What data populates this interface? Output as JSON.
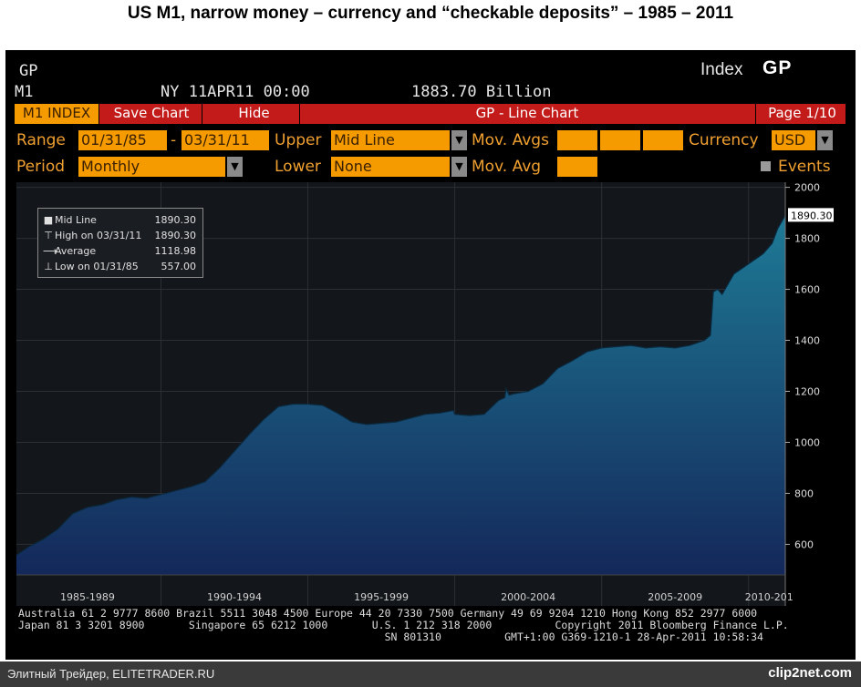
{
  "page_title": "US M1, narrow money – currency and “checkable deposits” –  1985 – 2011",
  "header": {
    "line1_left": "GP",
    "line1_right": "Index",
    "brand": "GP",
    "ticker": "M1",
    "as_of": "NY 11APR11 00:00",
    "last_value": "1883.70 Billion"
  },
  "toolbar": {
    "index_label": "M1 INDEX",
    "save_label": "Save Chart",
    "hide_label": "Hide",
    "chart_title": "GP - Line Chart",
    "page_label": "Page 1/10"
  },
  "controls": {
    "range_label": "Range",
    "range_start": "01/31/85",
    "range_sep": "-",
    "range_end": "03/31/11",
    "upper_label": "Upper",
    "upper_value": "Mid Line",
    "mov_avgs_label": "Mov. Avgs",
    "currency_label": "Currency",
    "currency_value": "USD",
    "period_label": "Period",
    "period_value": "Monthly",
    "lower_label": "Lower",
    "lower_value": "None",
    "mov_avg_label": "Mov. Avg",
    "events_label": "Events"
  },
  "legend": [
    {
      "symbol": "square",
      "label": "Mid Line",
      "value": "1890.30"
    },
    {
      "symbol": "high",
      "label": "High on 03/31/11",
      "value": "1890.30"
    },
    {
      "symbol": "avg",
      "label": "Average",
      "value": "1118.98"
    },
    {
      "symbol": "low",
      "label": "Low on 01/31/85",
      "value": "557.00"
    }
  ],
  "chart_data": {
    "type": "area",
    "x_range": [
      "1985-01-31",
      "2011-03-31"
    ],
    "x_tick_labels": [
      "1985-1989",
      "1990-1994",
      "1995-1999",
      "2000-2004",
      "2005-2009",
      "2010-201"
    ],
    "ylim": [
      480,
      2020
    ],
    "y_ticks": [
      600,
      800,
      1000,
      1200,
      1400,
      1600,
      1800,
      2000
    ],
    "last_value_label": "1890.30",
    "colors": {
      "fill_top": "#1e7a96",
      "fill_bottom": "#14285a",
      "line": "#0a2a40",
      "bg": "#13161a",
      "grid": "#2c3036"
    },
    "x": [
      1985.08,
      1985.5,
      1986.0,
      1986.5,
      1987.0,
      1987.5,
      1988.0,
      1988.5,
      1989.0,
      1989.5,
      1990.0,
      1990.5,
      1991.0,
      1991.5,
      1992.0,
      1992.5,
      1993.0,
      1993.5,
      1994.0,
      1994.5,
      1995.0,
      1995.5,
      1996.0,
      1996.5,
      1997.0,
      1997.5,
      1998.0,
      1998.5,
      1999.0,
      1999.5,
      1999.95,
      2000.0,
      2000.5,
      2001.0,
      2001.5,
      2001.7,
      2001.75,
      2001.85,
      2002.0,
      2002.5,
      2003.0,
      2003.5,
      2004.0,
      2004.5,
      2005.0,
      2005.5,
      2006.0,
      2006.5,
      2007.0,
      2007.5,
      2008.0,
      2008.5,
      2008.7,
      2008.8,
      2008.95,
      2009.1,
      2009.5,
      2010.0,
      2010.5,
      2010.8,
      2011.0,
      2011.25
    ],
    "values": [
      557,
      590,
      620,
      660,
      720,
      745,
      755,
      775,
      785,
      780,
      795,
      810,
      825,
      845,
      900,
      965,
      1030,
      1090,
      1140,
      1150,
      1150,
      1145,
      1115,
      1080,
      1070,
      1075,
      1080,
      1095,
      1110,
      1115,
      1125,
      1110,
      1105,
      1110,
      1165,
      1175,
      1210,
      1185,
      1190,
      1200,
      1230,
      1290,
      1320,
      1355,
      1370,
      1375,
      1380,
      1370,
      1375,
      1370,
      1380,
      1400,
      1420,
      1590,
      1600,
      1580,
      1660,
      1700,
      1740,
      1780,
      1840,
      1890
    ]
  }
}
